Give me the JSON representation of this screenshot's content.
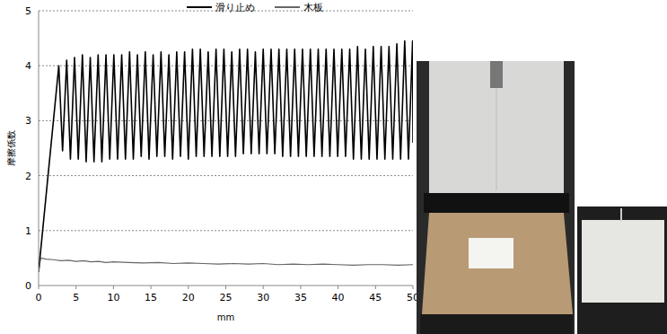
{
  "chart_data": {
    "type": "line",
    "x_label": "mm",
    "y_label": "摩擦係数",
    "xlim": [
      0,
      50
    ],
    "ylim": [
      0,
      5
    ],
    "xticks": [
      0,
      5,
      10,
      15,
      20,
      25,
      30,
      35,
      40,
      45,
      50
    ],
    "yticks": [
      0,
      1,
      2,
      3,
      4,
      5
    ],
    "grid": true,
    "legend": "top",
    "series": [
      {
        "name": "滑り止め",
        "color": "#000000",
        "x": [
          0,
          2.7,
          3.2,
          3.75,
          4.25,
          4.8,
          5.3,
          5.85,
          6.35,
          6.9,
          7.4,
          7.95,
          8.45,
          9.0,
          9.5,
          10.05,
          10.55,
          11.1,
          11.6,
          12.15,
          12.65,
          13.2,
          13.7,
          14.25,
          14.75,
          15.3,
          15.8,
          16.35,
          16.85,
          17.4,
          17.9,
          18.45,
          18.95,
          19.5,
          20.0,
          20.55,
          21.05,
          21.6,
          22.1,
          22.65,
          23.15,
          23.7,
          24.2,
          24.75,
          25.25,
          25.8,
          26.3,
          26.85,
          27.35,
          27.9,
          28.4,
          28.95,
          29.45,
          30.0,
          30.5,
          31.05,
          31.55,
          32.1,
          32.6,
          33.15,
          33.65,
          34.2,
          34.7,
          35.25,
          35.75,
          36.3,
          36.8,
          37.35,
          37.85,
          38.4,
          38.9,
          39.45,
          39.95,
          40.5,
          41.0,
          41.55,
          42.05,
          42.6,
          43.1,
          43.65,
          44.15,
          44.7,
          45.2,
          45.75,
          46.25,
          46.8,
          47.3,
          47.85,
          48.35,
          48.9,
          49.4,
          49.95,
          50.0
        ],
        "values": [
          0.25,
          4.0,
          2.45,
          4.1,
          2.3,
          4.15,
          2.3,
          4.2,
          2.25,
          4.15,
          2.25,
          4.2,
          2.25,
          4.2,
          2.3,
          4.2,
          2.3,
          4.2,
          2.3,
          4.25,
          2.3,
          4.2,
          2.35,
          4.25,
          2.3,
          4.2,
          2.35,
          4.25,
          2.35,
          4.2,
          2.3,
          4.25,
          2.35,
          4.25,
          2.3,
          4.3,
          2.35,
          4.3,
          2.35,
          4.25,
          2.35,
          4.3,
          2.35,
          4.3,
          2.35,
          4.25,
          2.35,
          4.3,
          2.4,
          4.3,
          2.4,
          4.25,
          2.4,
          4.3,
          2.4,
          4.3,
          2.4,
          4.3,
          2.35,
          4.3,
          2.35,
          4.3,
          2.35,
          4.3,
          2.35,
          4.3,
          2.35,
          4.3,
          2.35,
          4.3,
          2.35,
          4.3,
          2.35,
          4.3,
          2.35,
          4.3,
          2.3,
          4.35,
          2.3,
          4.3,
          2.3,
          4.35,
          2.3,
          4.35,
          2.3,
          4.35,
          2.3,
          4.4,
          2.3,
          4.45,
          2.3,
          4.45,
          2.6
        ]
      },
      {
        "name": "木板",
        "color": "#666666",
        "x": [
          0,
          0.3,
          1,
          2,
          3,
          4,
          5,
          6,
          7,
          8,
          9,
          10,
          12,
          14,
          16,
          18,
          20,
          22,
          24,
          26,
          28,
          30,
          32,
          34,
          36,
          38,
          40,
          42,
          44,
          46,
          48,
          50
        ],
        "values": [
          0.25,
          0.5,
          0.48,
          0.47,
          0.45,
          0.46,
          0.44,
          0.45,
          0.43,
          0.44,
          0.42,
          0.43,
          0.42,
          0.41,
          0.42,
          0.4,
          0.41,
          0.4,
          0.39,
          0.4,
          0.39,
          0.4,
          0.38,
          0.39,
          0.38,
          0.39,
          0.38,
          0.37,
          0.38,
          0.38,
          0.37,
          0.38
        ]
      }
    ]
  }
}
